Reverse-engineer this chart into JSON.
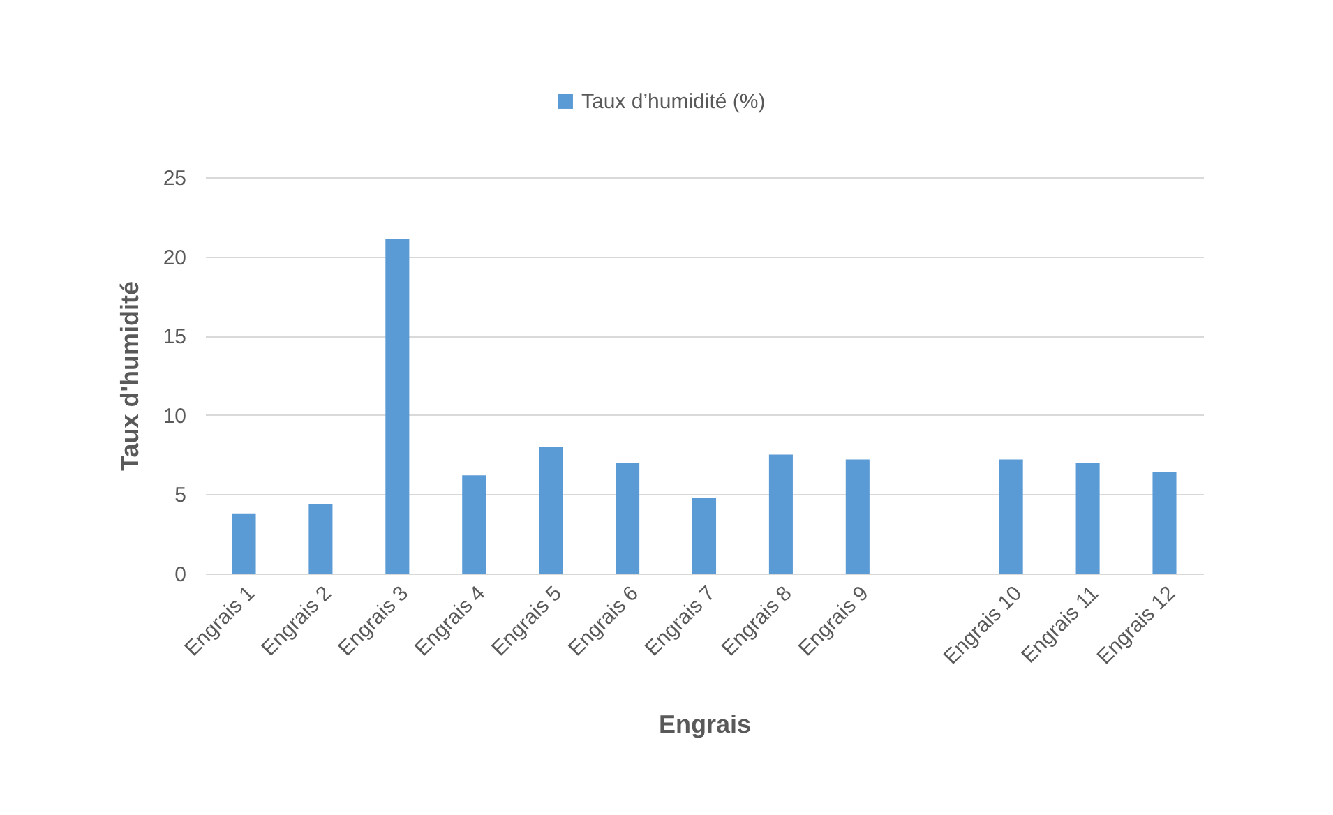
{
  "chart_data": {
    "type": "bar",
    "xlabel": "Engrais",
    "ylabel": "Taux d'humidité",
    "categories": [
      "Engrais 1",
      "Engrais 2",
      "Engrais 3",
      "Engrais 4",
      "Engrais 5",
      "Engrais 6",
      "Engrais 7",
      "Engrais 8",
      "Engrais 9",
      null,
      "Engrais 10",
      "Engrais 11",
      "Engrais 12"
    ],
    "series": [
      {
        "name": "Taux d’humidité (%)",
        "color": "#5b9bd5",
        "values": [
          3.8,
          4.4,
          21.1,
          6.2,
          8.0,
          7.0,
          4.8,
          7.5,
          7.2,
          null,
          7.2,
          7.0,
          6.4
        ]
      }
    ],
    "ylim": [
      0,
      25
    ],
    "yticks": [
      0,
      5,
      10,
      15,
      20,
      25
    ],
    "grid": "y",
    "legend": "top"
  }
}
